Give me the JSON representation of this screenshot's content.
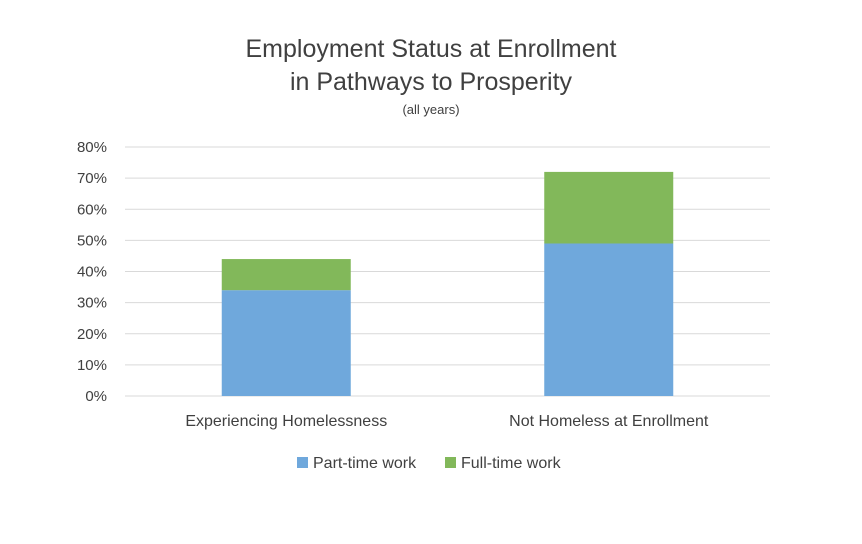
{
  "chart_data": {
    "type": "bar",
    "stacked": true,
    "title": [
      "Employment Status at Enrollment",
      "in Pathways to Prosperity"
    ],
    "subtitle": "(all years)",
    "categories": [
      "Experiencing Homelessness",
      "Not Homeless at Enrollment"
    ],
    "series": [
      {
        "name": "Part-time work",
        "values": [
          0.34,
          0.49
        ],
        "color": "#6fa8dc"
      },
      {
        "name": "Full-time work",
        "values": [
          0.1,
          0.23
        ],
        "color": "#82b85a"
      }
    ],
    "ylim": [
      0,
      0.8
    ],
    "yticks": [
      "0%",
      "10%",
      "20%",
      "30%",
      "40%",
      "50%",
      "60%",
      "70%",
      "80%"
    ],
    "grid": true,
    "legend_position": "bottom"
  }
}
